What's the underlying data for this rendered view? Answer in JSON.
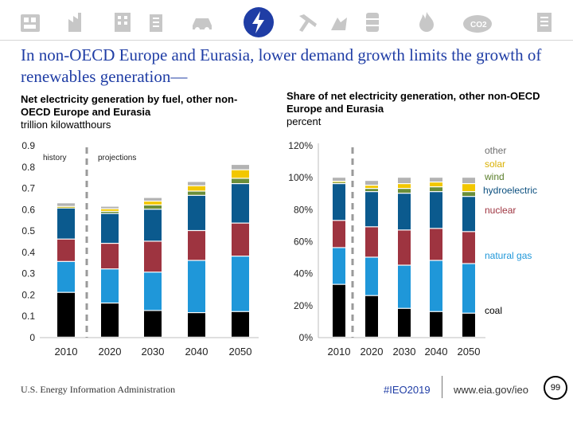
{
  "nav_icons": [
    "industrial-icon",
    "transportation-icon",
    "building-icon",
    "commercial-icon",
    "vehicle-icon",
    "electricity-icon",
    "mining-icon",
    "coal-icon",
    "oil-barrel-icon",
    "natural-gas-icon",
    "co2-icon",
    "report-icon"
  ],
  "title": "In non-OECD Europe and Eurasia, lower demand growth limits the growth of renewables generation—",
  "chart_data": [
    {
      "type": "bar",
      "stacked": true,
      "title": "Net electricity generation by fuel, other non-OECD Europe and Eurasia",
      "ylabel": "trillion kilowatthours",
      "categories": [
        "2010",
        "2020",
        "2030",
        "2040",
        "2050"
      ],
      "ylim": [
        0,
        0.9
      ],
      "yticks": [
        "0",
        "0.1",
        "0.2",
        "0.3",
        "0.4",
        "0.5",
        "0.6",
        "0.7",
        "0.8",
        "0.9"
      ],
      "annotations": [
        "history",
        "projections"
      ],
      "series": [
        {
          "name": "coal",
          "color": "#000000",
          "values": [
            0.21,
            0.16,
            0.125,
            0.115,
            0.12
          ]
        },
        {
          "name": "natural gas",
          "color": "#1f97d9",
          "values": [
            0.145,
            0.16,
            0.18,
            0.245,
            0.26
          ]
        },
        {
          "name": "nuclear",
          "color": "#9e3440",
          "values": [
            0.105,
            0.12,
            0.145,
            0.14,
            0.155
          ]
        },
        {
          "name": "hydroelectric",
          "color": "#0b5a8e",
          "values": [
            0.145,
            0.14,
            0.15,
            0.165,
            0.185
          ]
        },
        {
          "name": "wind",
          "color": "#6b8e3a",
          "values": [
            0.005,
            0.01,
            0.02,
            0.02,
            0.025
          ]
        },
        {
          "name": "solar",
          "color": "#f2c700",
          "values": [
            0.003,
            0.012,
            0.018,
            0.025,
            0.04
          ]
        },
        {
          "name": "other",
          "color": "#b3b3b3",
          "values": [
            0.017,
            0.012,
            0.017,
            0.02,
            0.025
          ]
        }
      ]
    },
    {
      "type": "bar",
      "stacked": true,
      "title": "Share of net electricity generation, other non-OECD Europe and Eurasia",
      "ylabel": "percent",
      "categories": [
        "2010",
        "2020",
        "2030",
        "2040",
        "2050"
      ],
      "ylim": [
        0,
        120
      ],
      "yticks": [
        "0%",
        "20%",
        "40%",
        "60%",
        "80%",
        "100%",
        "120%"
      ],
      "series": [
        {
          "name": "coal",
          "color": "#000000",
          "values": [
            33,
            26,
            18,
            16,
            15
          ]
        },
        {
          "name": "natural gas",
          "color": "#1f97d9",
          "values": [
            23,
            24,
            27,
            32,
            31
          ]
        },
        {
          "name": "nuclear",
          "color": "#9e3440",
          "values": [
            17,
            19,
            22,
            20,
            20
          ]
        },
        {
          "name": "hydroelectric",
          "color": "#0b5a8e",
          "values": [
            23,
            22,
            23,
            23,
            22
          ]
        },
        {
          "name": "wind",
          "color": "#6b8e3a",
          "values": [
            1,
            2,
            3,
            3,
            3
          ]
        },
        {
          "name": "solar",
          "color": "#f2c700",
          "values": [
            0.5,
            2,
            3,
            3,
            5
          ]
        },
        {
          "name": "other",
          "color": "#b3b3b3",
          "values": [
            2.5,
            3,
            4,
            3,
            4
          ]
        }
      ],
      "legend": [
        {
          "label": "other",
          "color": "#6e6e6e"
        },
        {
          "label": "solar",
          "color": "#d9b000"
        },
        {
          "label": "wind",
          "color": "#5b7f2b"
        },
        {
          "label": "hydroelectric",
          "color": "#0b4f7f"
        },
        {
          "label": "nuclear",
          "color": "#9e3440"
        },
        {
          "label": "natural gas",
          "color": "#1f97d9"
        },
        {
          "label": "coal",
          "color": "#000000"
        }
      ]
    }
  ],
  "footer": {
    "source": "U.S. Energy Information Administration",
    "tag": "#IEO2019",
    "url": "www.eia.gov/ieo",
    "page": "99"
  }
}
